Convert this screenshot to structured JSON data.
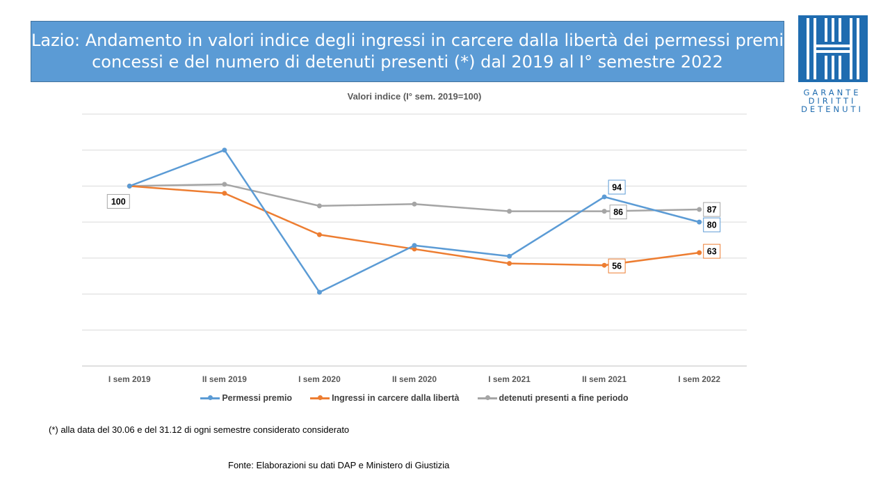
{
  "header": {
    "title_line1": "Lazio: Andamento in valori indice degli ingressi in carcere dalla libertà dei permessi  premi",
    "title_line2": "concessi  e del numero di detenuti presenti (*) dal 2019 al I° semestre  2022"
  },
  "logo": {
    "line1": "GARANTE",
    "line2": "DIRITTI",
    "line3": "DETENUTI",
    "icon": "prison-bars-h-icon",
    "color": "#1f6cb0"
  },
  "chart_data": {
    "type": "line",
    "title": "",
    "subtitle": "Valori indice (I° sem. 2019=100)",
    "categories": [
      "I sem 2019",
      "II sem 2019",
      "I sem 2020",
      "II sem 2020",
      "I sem 2021",
      "II sem 2021",
      "I sem 2022"
    ],
    "ylim": [
      0,
      140
    ],
    "y_axis_labels_shown": false,
    "grid": true,
    "legend_position": "bottom",
    "series": [
      {
        "name": "Permessi premio",
        "color": "#5b9bd5",
        "values": [
          100,
          120,
          41,
          67,
          61,
          94,
          80
        ],
        "labels": [
          null,
          null,
          null,
          null,
          null,
          "94",
          "80"
        ]
      },
      {
        "name": "Ingressi in carcere dalla libertà",
        "color": "#ed7d31",
        "values": [
          100,
          96,
          73,
          65,
          57,
          56,
          63
        ],
        "labels": [
          "100",
          null,
          null,
          null,
          null,
          "56",
          "63"
        ]
      },
      {
        "name": "detenuti presenti a fine periodo",
        "color": "#a5a5a5",
        "values": [
          100,
          101,
          89,
          90,
          86,
          86,
          87
        ],
        "labels": [
          null,
          null,
          null,
          null,
          null,
          "86",
          "87"
        ]
      }
    ]
  },
  "footer": {
    "note": "(*) alla data del 30.06 e del 31.12 di ogni semestre considerato  considerato",
    "source": "Fonte:  Elaborazioni su dati DAP e Ministero di Giustizia"
  }
}
